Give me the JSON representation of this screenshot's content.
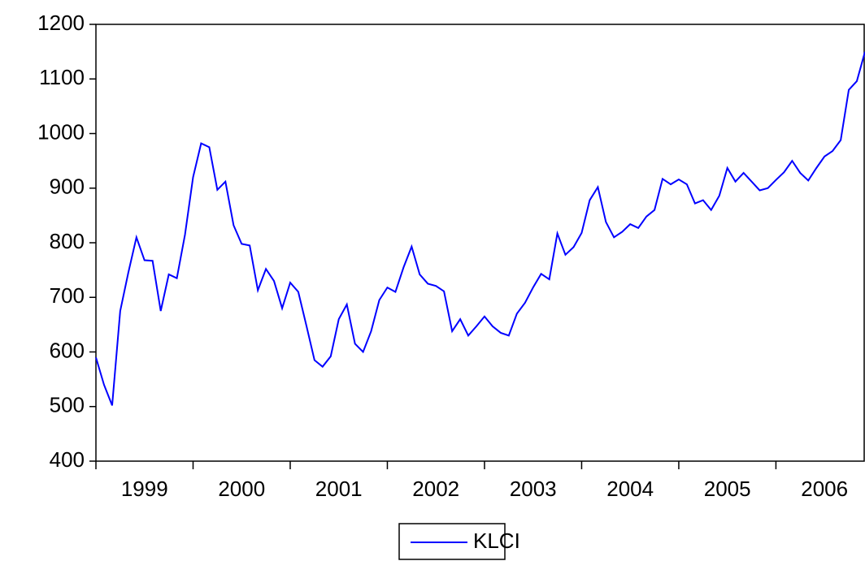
{
  "chart_data": {
    "type": "line",
    "x": [
      1999,
      1999.083,
      1999.167,
      1999.25,
      1999.333,
      1999.417,
      1999.5,
      1999.583,
      1999.667,
      1999.75,
      1999.833,
      1999.917,
      2000,
      2000.083,
      2000.167,
      2000.25,
      2000.333,
      2000.417,
      2000.5,
      2000.583,
      2000.667,
      2000.75,
      2000.833,
      2000.917,
      2001,
      2001.083,
      2001.167,
      2001.25,
      2001.333,
      2001.417,
      2001.5,
      2001.583,
      2001.667,
      2001.75,
      2001.833,
      2001.917,
      2002,
      2002.083,
      2002.167,
      2002.25,
      2002.333,
      2002.417,
      2002.5,
      2002.583,
      2002.667,
      2002.75,
      2002.833,
      2002.917,
      2003,
      2003.083,
      2003.167,
      2003.25,
      2003.333,
      2003.417,
      2003.5,
      2003.583,
      2003.667,
      2003.75,
      2003.833,
      2003.917,
      2004,
      2004.083,
      2004.167,
      2004.25,
      2004.333,
      2004.417,
      2004.5,
      2004.583,
      2004.667,
      2004.75,
      2004.833,
      2004.917,
      2005,
      2005.083,
      2005.167,
      2005.25,
      2005.333,
      2005.417,
      2005.5,
      2005.583,
      2005.667,
      2005.75,
      2005.833,
      2005.917,
      2006,
      2006.083,
      2006.167,
      2006.25,
      2006.333,
      2006.417,
      2006.5,
      2006.583,
      2006.667,
      2006.75,
      2006.833,
      2006.917
    ],
    "series": [
      {
        "name": "KLCI",
        "color": "#0000ff",
        "values": [
          590,
          540,
          502,
          675,
          745,
          810,
          768,
          767,
          675,
          742,
          735,
          815,
          920,
          982,
          975,
          897,
          912,
          832,
          798,
          795,
          713,
          752,
          730,
          680,
          727,
          710,
          648,
          585,
          573,
          592,
          660,
          687,
          615,
          600,
          638,
          695,
          718,
          710,
          755,
          793,
          742,
          725,
          721,
          711,
          638,
          660,
          630,
          647,
          665,
          647,
          635,
          630,
          670,
          690,
          718,
          743,
          733,
          817,
          778,
          792,
          818,
          878,
          902,
          838,
          810,
          820,
          834,
          827,
          848,
          860,
          917,
          907,
          916,
          907,
          872,
          878,
          860,
          886,
          937,
          912,
          928,
          912,
          896,
          900,
          915,
          929,
          950,
          928,
          914,
          937,
          958,
          968,
          988,
          1080,
          1096,
          1150
        ]
      }
    ],
    "xlim": [
      1999,
      2006.917
    ],
    "xticks": [
      {
        "value": 1999.5,
        "label": "1999"
      },
      {
        "value": 2000.5,
        "label": "2000"
      },
      {
        "value": 2001.5,
        "label": "2001"
      },
      {
        "value": 2002.5,
        "label": "2002"
      },
      {
        "value": 2003.5,
        "label": "2003"
      },
      {
        "value": 2004.5,
        "label": "2004"
      },
      {
        "value": 2005.5,
        "label": "2005"
      },
      {
        "value": 2006.5,
        "label": "2006"
      }
    ],
    "ylim": [
      400,
      1200
    ],
    "yticks": [
      400,
      500,
      600,
      700,
      800,
      900,
      1000,
      1100,
      1200
    ],
    "grid": false
  }
}
